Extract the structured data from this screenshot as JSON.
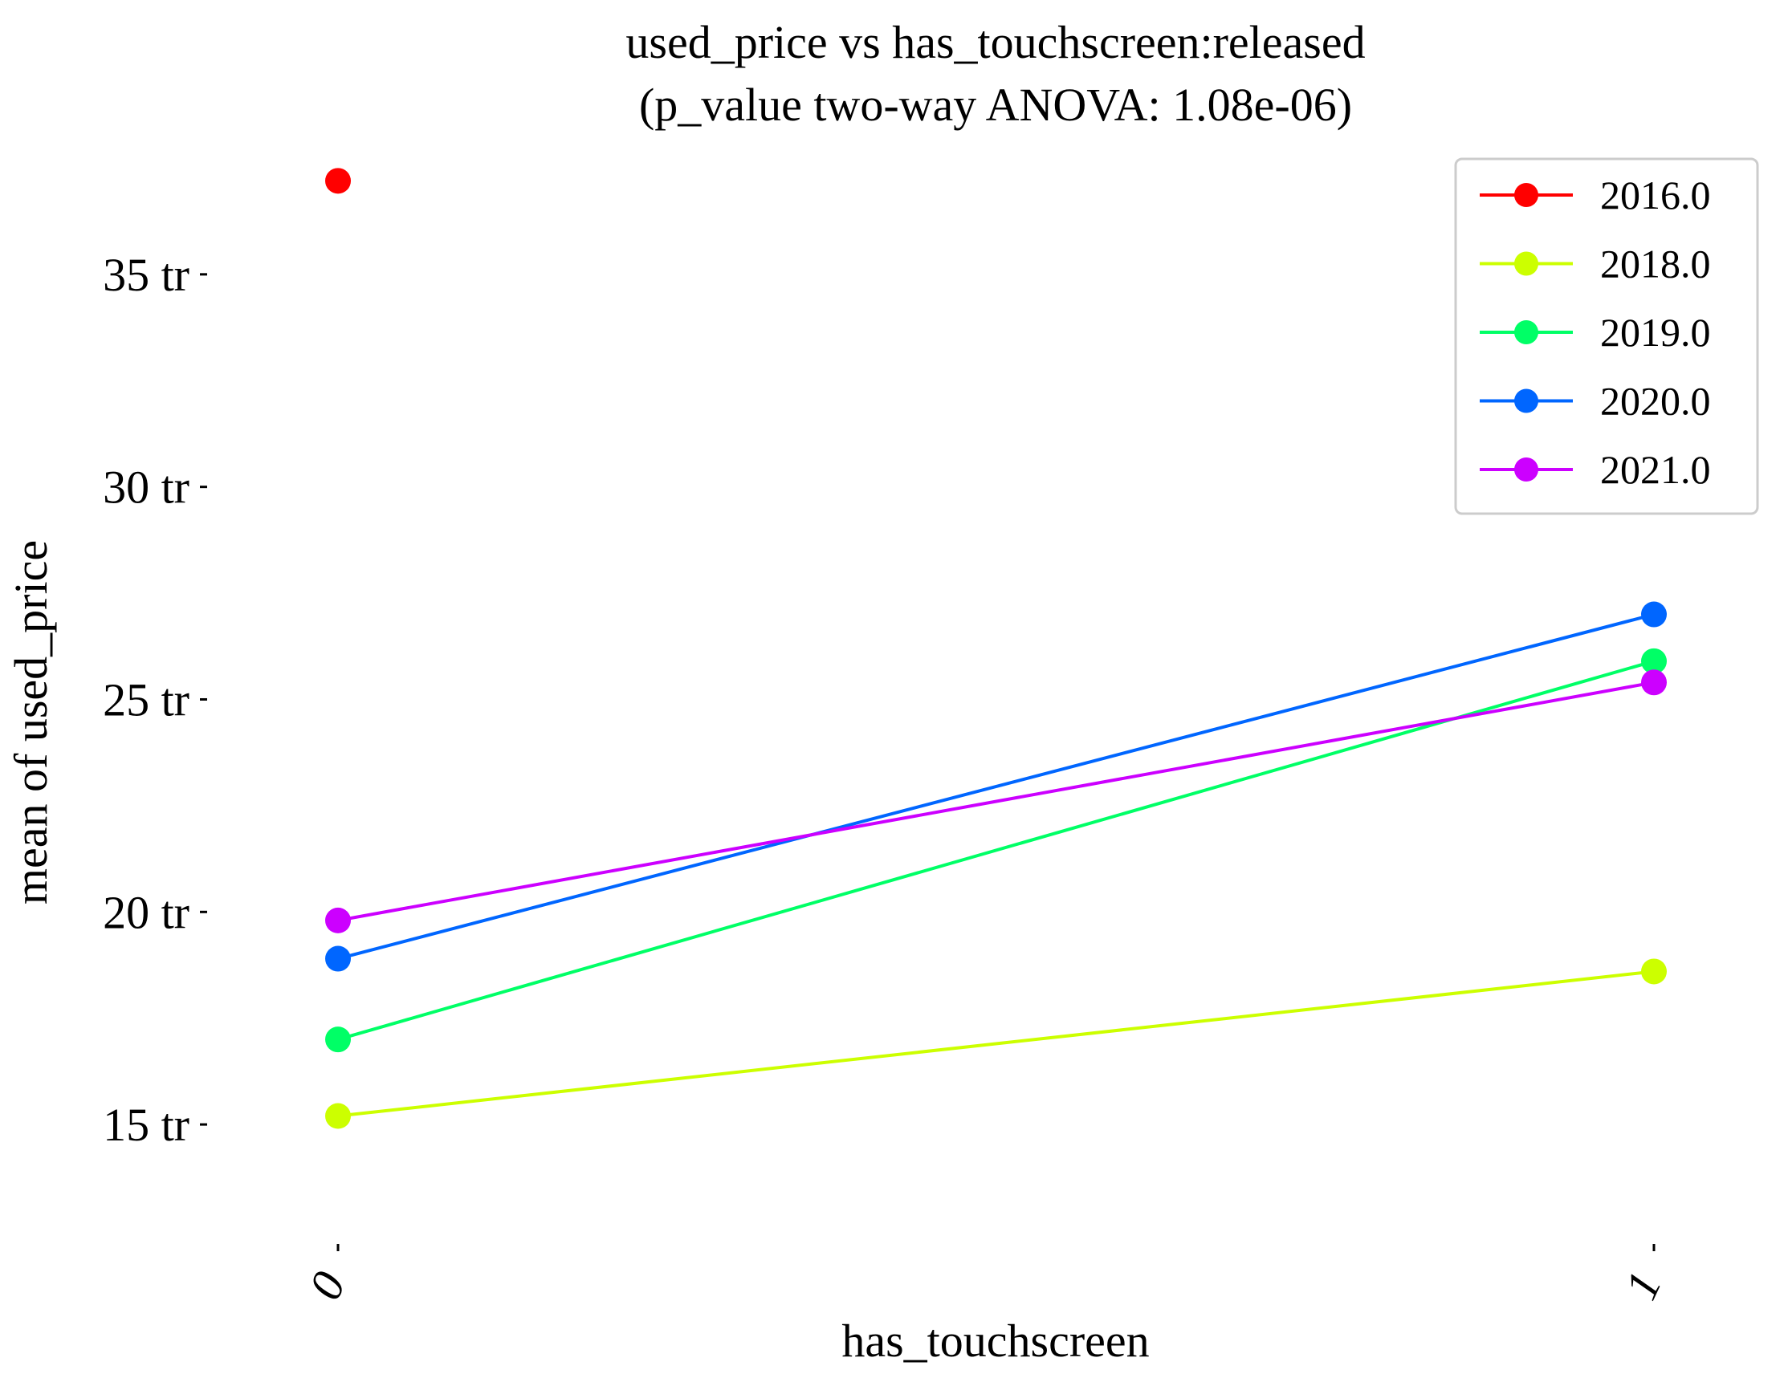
{
  "chart_data": {
    "type": "line",
    "title_line1": "used_price vs has_touchscreen:released",
    "title_line2": "(p_value two-way ANOVA: 1.08e-06)",
    "xlabel": "has_touchscreen",
    "ylabel": "mean of used_price",
    "categories": [
      "0",
      "1"
    ],
    "y_tick_values": [
      15,
      20,
      25,
      30,
      35
    ],
    "y_tick_labels": [
      "15 tr",
      "20 tr",
      "25 tr",
      "30 tr",
      "35 tr"
    ],
    "ylim": [
      12.0,
      39.0
    ],
    "grid": false,
    "legend_position": "top-right",
    "series": [
      {
        "name": "2016.0",
        "color": "#ff0000",
        "values": [
          37.2,
          null
        ]
      },
      {
        "name": "2018.0",
        "color": "#ccff00",
        "values": [
          15.2,
          18.6
        ]
      },
      {
        "name": "2019.0",
        "color": "#00ff66",
        "values": [
          17.0,
          25.9
        ]
      },
      {
        "name": "2020.0",
        "color": "#0066ff",
        "values": [
          18.9,
          27.0
        ]
      },
      {
        "name": "2021.0",
        "color": "#cc00ff",
        "values": [
          19.8,
          25.4
        ]
      }
    ]
  }
}
